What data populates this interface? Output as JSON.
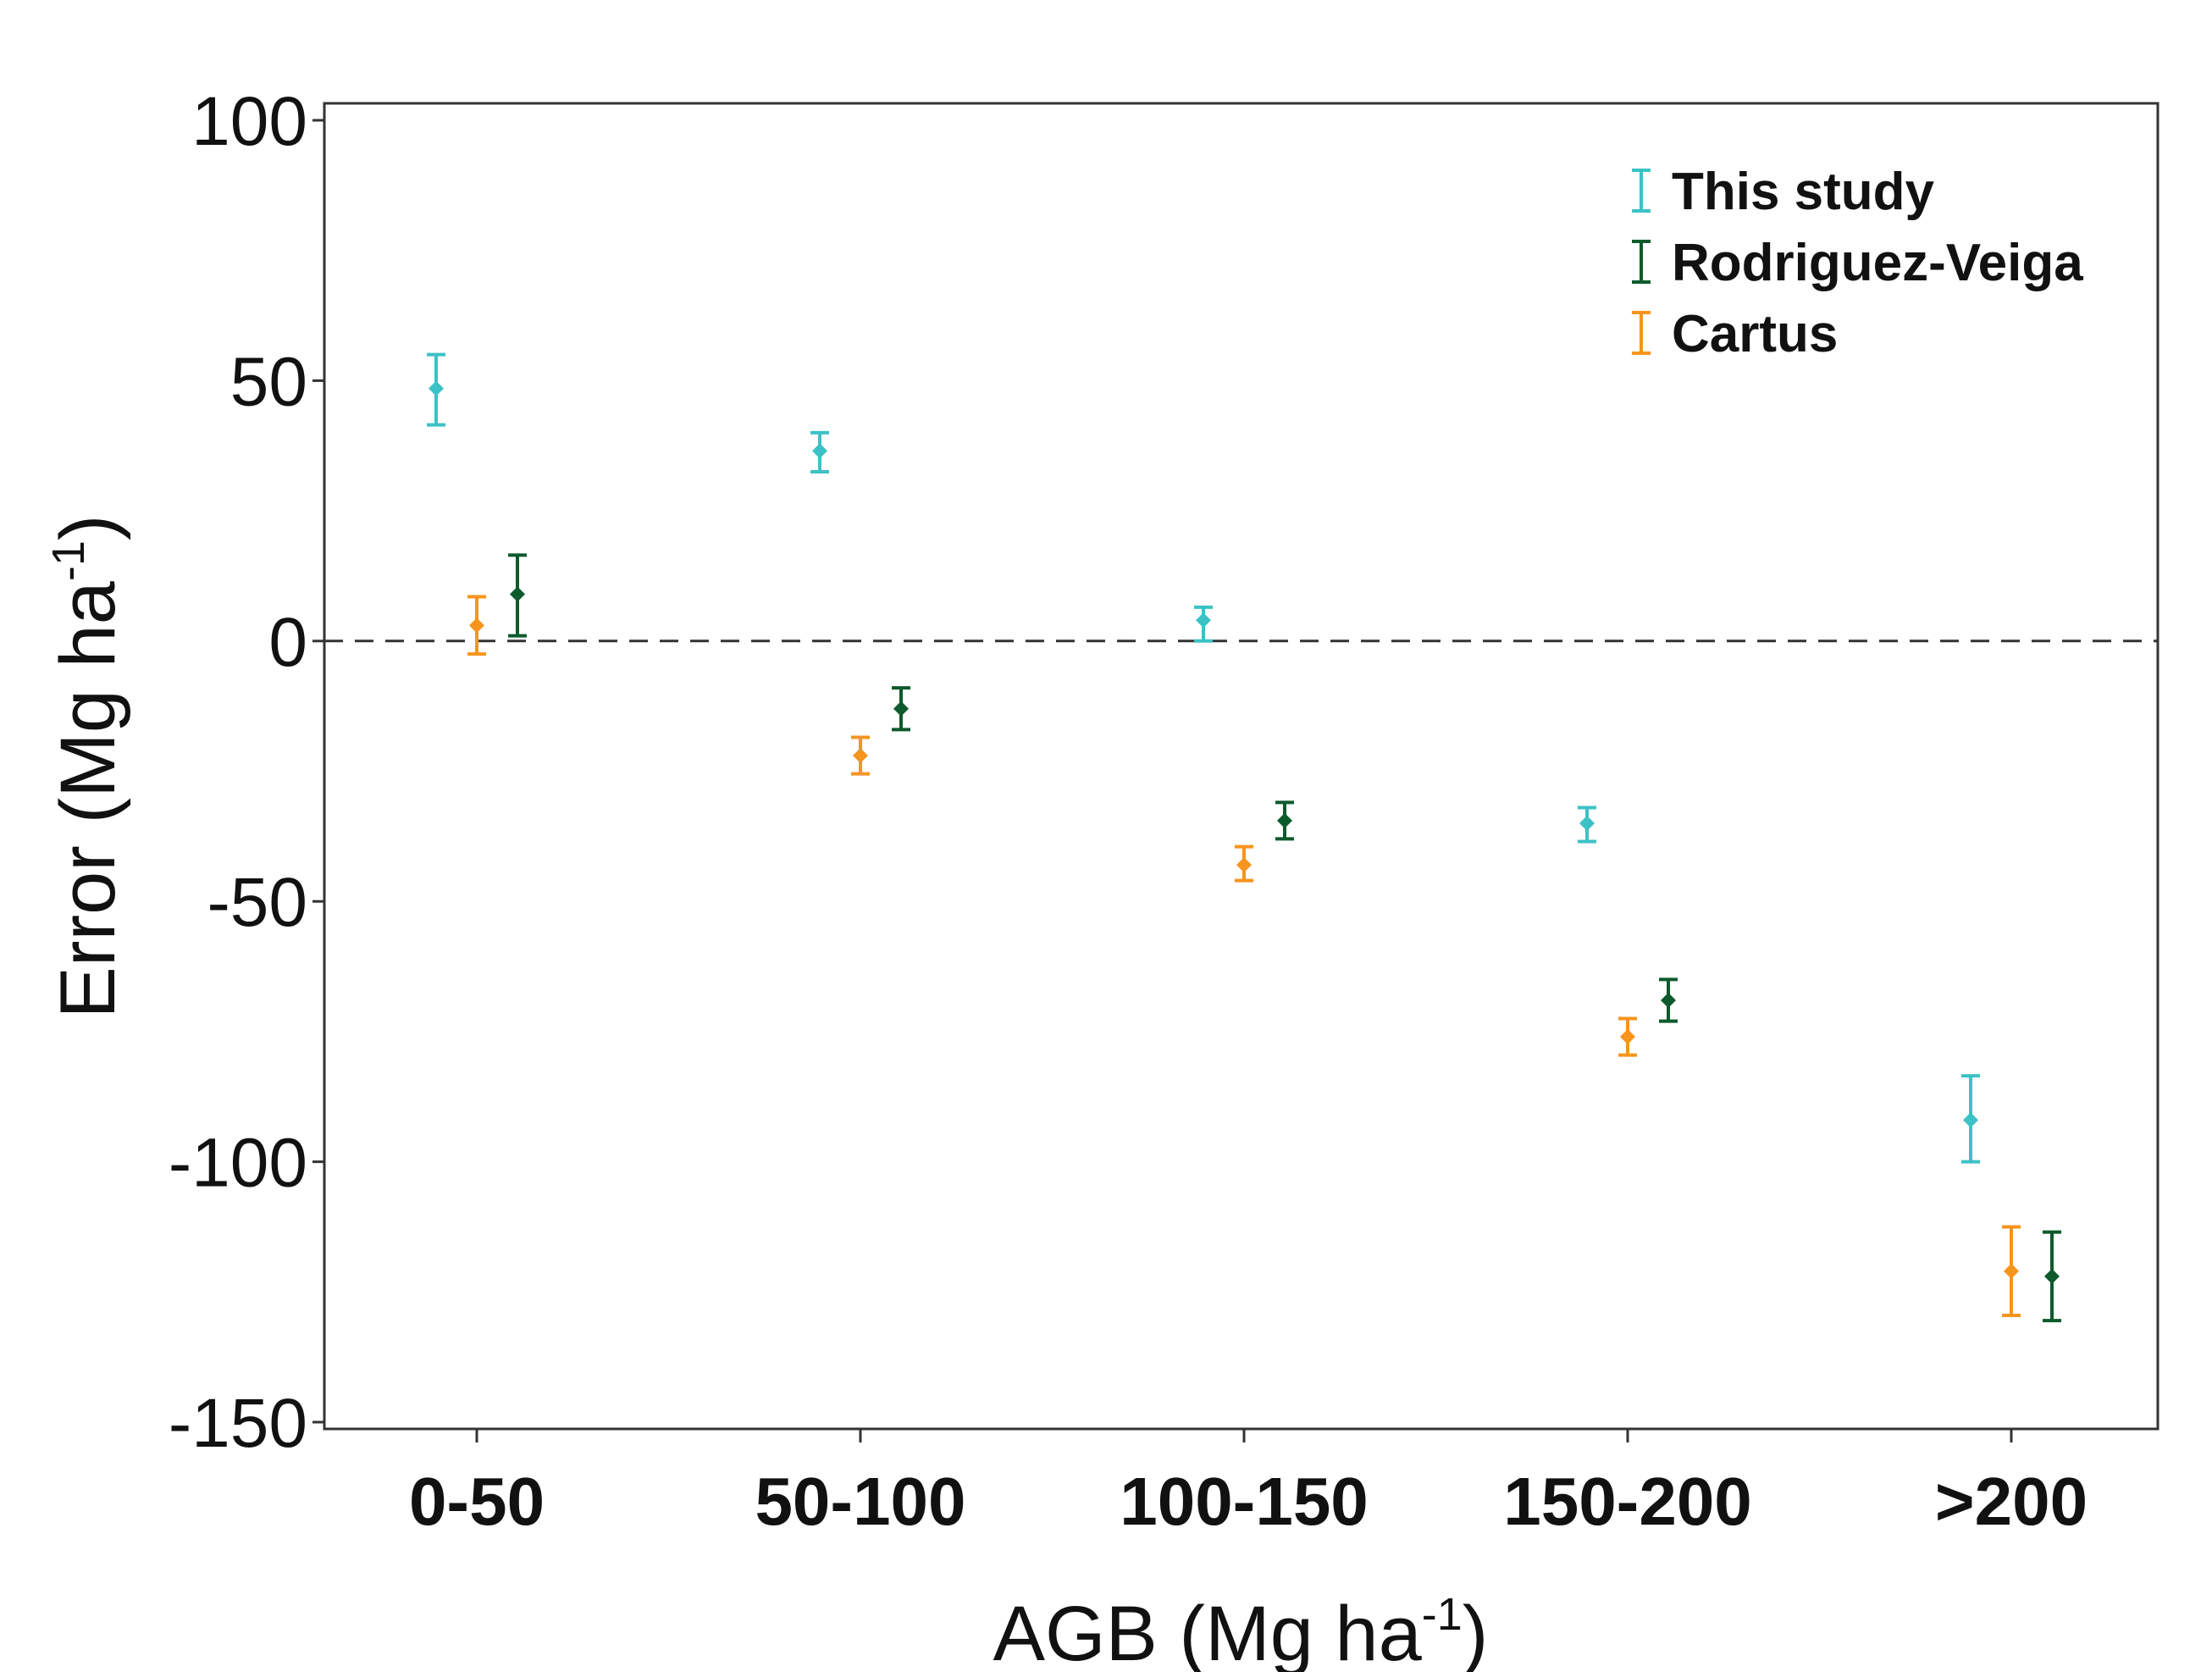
{
  "chart_data": {
    "type": "scatter",
    "title": "",
    "xlabel": "AGB (Mg ha",
    "xlabel_sup": "-1",
    "xlabel_close": ")",
    "ylabel": "Error (Mg ha",
    "ylabel_sup": "-1",
    "ylabel_close": ")",
    "categories": [
      "0-50",
      "50-100",
      "100-150",
      "150-200",
      ">200"
    ],
    "ylim": [
      -150,
      100
    ],
    "yticks": [
      100,
      50,
      0,
      -50,
      -100,
      -150
    ],
    "reference_line": {
      "y": 0,
      "style": "dashed"
    },
    "legend_position": "top-right",
    "series": [
      {
        "name": "This study",
        "color": "#3cc2c6",
        "values": [
          48.5,
          36.5,
          4,
          -35,
          -92
        ],
        "lower": [
          41.5,
          32.5,
          0,
          -38.5,
          -100
        ],
        "upper": [
          55,
          40,
          6.5,
          -32,
          -83.5
        ]
      },
      {
        "name": "Rodriguez-Veiga",
        "color": "#0d5a2c",
        "values": [
          9,
          -13,
          -34.5,
          -69,
          -122
        ],
        "lower": [
          1,
          -17,
          -38,
          -73,
          -130.5
        ],
        "upper": [
          16.5,
          -9,
          -31,
          -65,
          -113.5
        ]
      },
      {
        "name": "Cartus",
        "color": "#f7941d",
        "values": [
          3,
          -22,
          -43,
          -76,
          -121
        ],
        "lower": [
          -2.5,
          -25.5,
          -46,
          -79.5,
          -129.5
        ],
        "upper": [
          8.5,
          -18.5,
          -39.5,
          -72.5,
          -112.5
        ]
      }
    ]
  }
}
